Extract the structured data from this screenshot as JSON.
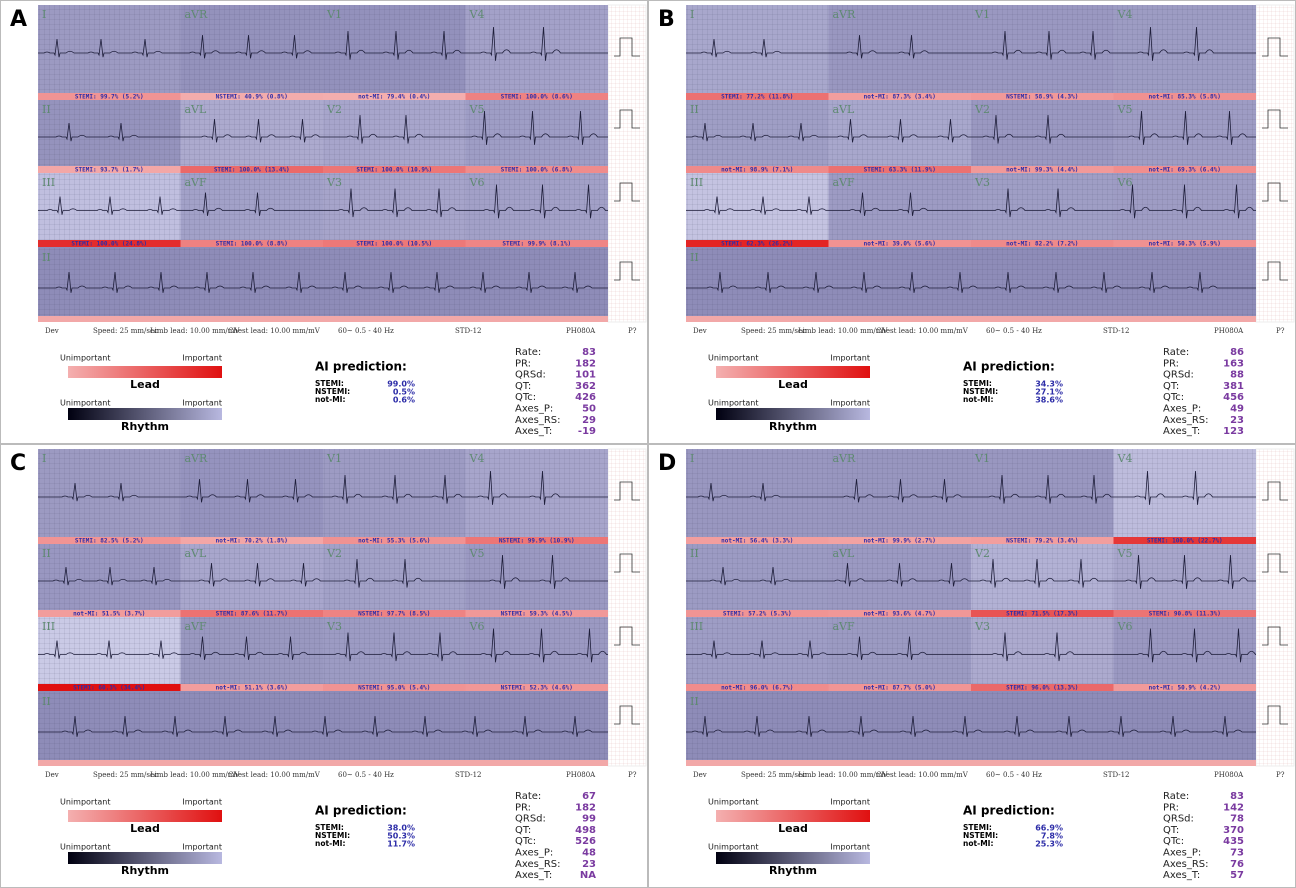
{
  "common": {
    "footer": [
      "Dev",
      "Speed: 25 mm/sec",
      "Limb lead: 10.00 mm/mV",
      "Chest lead: 10.00 mm/mV",
      "60~ 0.5 - 40 Hz",
      "STD-12",
      "PH080A",
      "P?"
    ],
    "legend": {
      "low": "Unimportant",
      "high": "Important",
      "lead": "Lead",
      "rhythm": "Rhythm"
    },
    "ai_title": "AI prediction:",
    "classes": [
      "STEMI:",
      "NSTEMI:",
      "not-MI:"
    ],
    "measurement_labels": [
      "Rate:",
      "PR:",
      "QRSd:",
      "QT:",
      "QTc:",
      "Axes_P:",
      "Axes_RS:",
      "Axes_T:"
    ],
    "lead_names": [
      "I",
      "aVR",
      "V1",
      "V4",
      "II",
      "aVL",
      "V2",
      "V5",
      "III",
      "aVF",
      "V3",
      "V6"
    ],
    "rhythm_lead": "II"
  },
  "panels": [
    {
      "label": "A",
      "lead_predictions": [
        "STEMI: 99.7% (5.2%)",
        "NSTEMI: 40.9% (0.8%)",
        "not-MI: 79.4% (0.4%)",
        "STEMI: 100.0% (8.6%)",
        "STEMI: 93.7% (1.7%)",
        "STEMI: 100.0% (13.4%)",
        "STEMI: 100.0% (10.9%)",
        "STEMI: 100.0% (6.8%)",
        "STEMI: 100.0% (24.8%)",
        "STEMI: 100.0% (8.8%)",
        "STEMI: 100.0% (10.5%)",
        "STEMI: 99.9% (8.1%)"
      ],
      "ai_prediction": [
        "99.0%",
        "0.5%",
        "0.6%"
      ],
      "measurements": [
        "83",
        "182",
        "101",
        "362",
        "426",
        "50",
        "29",
        "-19"
      ]
    },
    {
      "label": "B",
      "lead_predictions": [
        "STEMI: 77.2% (11.8%)",
        "not-MI: 87.3% (3.4%)",
        "NSTEMI: 58.9% (4.3%)",
        "not-MI: 85.3% (5.8%)",
        "not-MI: 98.9% (7.1%)",
        "STEMI: 63.3% (11.9%)",
        "not-MI: 99.3% (4.4%)",
        "not-MI: 69.3% (6.4%)",
        "STEMI: 62.3% (26.2%)",
        "not-MI: 39.0% (5.6%)",
        "not-MI: 82.2% (7.2%)",
        "not-MI: 50.3% (5.9%)"
      ],
      "ai_prediction": [
        "34.3%",
        "27.1%",
        "38.6%"
      ],
      "measurements": [
        "86",
        "163",
        "88",
        "381",
        "456",
        "49",
        "23",
        "123"
      ]
    },
    {
      "label": "C",
      "lead_predictions": [
        "STEMI: 82.5% (5.2%)",
        "not-MI: 70.2% (1.8%)",
        "not-MI: 55.3% (5.6%)",
        "NSTEMI: 99.9% (10.9%)",
        "not-MI: 51.5% (3.7%)",
        "STEMI: 87.6% (11.7%)",
        "NSTEMI: 97.7% (8.5%)",
        "NSTEMI: 59.3% (4.5%)",
        "STEMI: 60.3% (34.4%)",
        "not-MI: 51.1% (3.6%)",
        "NSTEMI: 95.0% (5.4%)",
        "NSTEMI: 52.3% (4.6%)"
      ],
      "ai_prediction": [
        "38.0%",
        "50.3%",
        "11.7%"
      ],
      "measurements": [
        "67",
        "182",
        "99",
        "498",
        "526",
        "48",
        "23",
        "NA"
      ]
    },
    {
      "label": "D",
      "lead_predictions": [
        "not-MI: 56.4% (3.3%)",
        "not-MI: 99.9% (2.7%)",
        "NSTEMI: 79.2% (3.4%)",
        "STEMI: 100.0% (22.7%)",
        "STEMI: 57.2% (5.3%)",
        "not-MI: 93.6% (4.7%)",
        "STEMI: 71.5% (17.3%)",
        "STEMI: 90.8% (11.3%)",
        "not-MI: 96.0% (6.7%)",
        "not-MI: 87.7% (5.0%)",
        "STEMI: 96.0% (13.3%)",
        "not-MI: 50.9% (4.2%)"
      ],
      "ai_prediction": [
        "66.9%",
        "7.8%",
        "25.3%"
      ],
      "measurements": [
        "83",
        "142",
        "78",
        "370",
        "435",
        "73",
        "76",
        "57"
      ]
    }
  ]
}
